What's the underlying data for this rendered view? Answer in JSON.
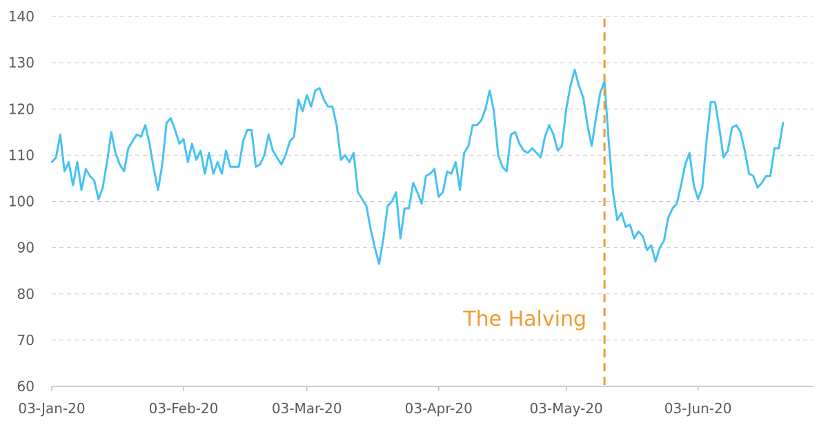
{
  "chart_data": {
    "type": "line",
    "title": "",
    "xlabel": "",
    "ylabel": "",
    "ylim": [
      60,
      140
    ],
    "yticks": [
      60,
      70,
      80,
      90,
      100,
      110,
      120,
      130,
      140
    ],
    "xticks": [
      {
        "date": "2020-01-03",
        "label": "03-Jan-20"
      },
      {
        "date": "2020-02-03",
        "label": "03-Feb-20"
      },
      {
        "date": "2020-03-03",
        "label": "03-Mar-20"
      },
      {
        "date": "2020-04-03",
        "label": "03-Apr-20"
      },
      {
        "date": "2020-05-03",
        "label": "03-May-20"
      },
      {
        "date": "2020-06-03",
        "label": "03-Jun-20"
      }
    ],
    "xlim": [
      "2020-01-03",
      "2020-06-30"
    ],
    "grid": true,
    "series": [
      {
        "color": "#45c2f3",
        "points": [
          [
            "2020-01-03",
            108.5
          ],
          [
            "2020-01-04",
            109.5
          ],
          [
            "2020-01-05",
            114.5
          ],
          [
            "2020-01-06",
            106.5
          ],
          [
            "2020-01-07",
            108.5
          ],
          [
            "2020-01-08",
            103.5
          ],
          [
            "2020-01-09",
            108.5
          ],
          [
            "2020-01-10",
            102.5
          ],
          [
            "2020-01-11",
            107.0
          ],
          [
            "2020-01-12",
            105.5
          ],
          [
            "2020-01-13",
            104.5
          ],
          [
            "2020-01-14",
            100.5
          ],
          [
            "2020-01-15",
            103.0
          ],
          [
            "2020-01-16",
            108.5
          ],
          [
            "2020-01-17",
            115.0
          ],
          [
            "2020-01-18",
            110.5
          ],
          [
            "2020-01-19",
            108.0
          ],
          [
            "2020-01-20",
            106.5
          ],
          [
            "2020-01-21",
            111.5
          ],
          [
            "2020-01-22",
            113.0
          ],
          [
            "2020-01-23",
            114.5
          ],
          [
            "2020-01-24",
            114.0
          ],
          [
            "2020-01-25",
            116.5
          ],
          [
            "2020-01-26",
            112.5
          ],
          [
            "2020-01-27",
            107.0
          ],
          [
            "2020-01-28",
            102.5
          ],
          [
            "2020-01-29",
            108.0
          ],
          [
            "2020-01-30",
            117.0
          ],
          [
            "2020-01-31",
            118.0
          ],
          [
            "2020-02-01",
            115.5
          ],
          [
            "2020-02-02",
            112.5
          ],
          [
            "2020-02-03",
            113.5
          ],
          [
            "2020-02-04",
            108.5
          ],
          [
            "2020-02-05",
            112.5
          ],
          [
            "2020-02-06",
            109.0
          ],
          [
            "2020-02-07",
            111.0
          ],
          [
            "2020-02-08",
            106.0
          ],
          [
            "2020-02-09",
            110.5
          ],
          [
            "2020-02-10",
            106.0
          ],
          [
            "2020-02-11",
            108.5
          ],
          [
            "2020-02-12",
            106.0
          ],
          [
            "2020-02-13",
            111.0
          ],
          [
            "2020-02-14",
            107.5
          ],
          [
            "2020-02-15",
            107.5
          ],
          [
            "2020-02-16",
            107.5
          ],
          [
            "2020-02-17",
            113.0
          ],
          [
            "2020-02-18",
            115.5
          ],
          [
            "2020-02-19",
            115.5
          ],
          [
            "2020-02-20",
            107.5
          ],
          [
            "2020-02-21",
            108.0
          ],
          [
            "2020-02-22",
            110.0
          ],
          [
            "2020-02-23",
            114.5
          ],
          [
            "2020-02-24",
            111.0
          ],
          [
            "2020-02-25",
            109.5
          ],
          [
            "2020-02-26",
            108.0
          ],
          [
            "2020-02-27",
            110.0
          ],
          [
            "2020-02-28",
            113.0
          ],
          [
            "2020-02-29",
            114.0
          ],
          [
            "2020-03-01",
            122.0
          ],
          [
            "2020-03-02",
            119.5
          ],
          [
            "2020-03-03",
            123.0
          ],
          [
            "2020-03-04",
            120.5
          ],
          [
            "2020-03-05",
            124.0
          ],
          [
            "2020-03-06",
            124.5
          ],
          [
            "2020-03-07",
            122.0
          ],
          [
            "2020-03-08",
            120.5
          ],
          [
            "2020-03-09",
            120.5
          ],
          [
            "2020-03-10",
            116.5
          ],
          [
            "2020-03-11",
            109.0
          ],
          [
            "2020-03-12",
            110.0
          ],
          [
            "2020-03-13",
            108.5
          ],
          [
            "2020-03-14",
            110.5
          ],
          [
            "2020-03-15",
            102.0
          ],
          [
            "2020-03-16",
            100.5
          ],
          [
            "2020-03-17",
            99.0
          ],
          [
            "2020-03-18",
            94.0
          ],
          [
            "2020-03-19",
            90.0
          ],
          [
            "2020-03-20",
            86.5
          ],
          [
            "2020-03-21",
            92.0
          ],
          [
            "2020-03-22",
            99.0
          ],
          [
            "2020-03-23",
            100.0
          ],
          [
            "2020-03-24",
            102.0
          ],
          [
            "2020-03-25",
            92.0
          ],
          [
            "2020-03-26",
            98.5
          ],
          [
            "2020-03-27",
            98.5
          ],
          [
            "2020-03-28",
            104.0
          ],
          [
            "2020-03-29",
            102.0
          ],
          [
            "2020-03-30",
            99.5
          ],
          [
            "2020-03-31",
            105.5
          ],
          [
            "2020-04-01",
            106.0
          ],
          [
            "2020-04-02",
            107.0
          ],
          [
            "2020-04-03",
            101.0
          ],
          [
            "2020-04-04",
            102.0
          ],
          [
            "2020-04-05",
            106.5
          ],
          [
            "2020-04-06",
            106.0
          ],
          [
            "2020-04-07",
            108.5
          ],
          [
            "2020-04-08",
            102.5
          ],
          [
            "2020-04-09",
            110.5
          ],
          [
            "2020-04-10",
            112.0
          ],
          [
            "2020-04-11",
            116.5
          ],
          [
            "2020-04-12",
            116.5
          ],
          [
            "2020-04-13",
            117.5
          ],
          [
            "2020-04-14",
            120.0
          ],
          [
            "2020-04-15",
            124.0
          ],
          [
            "2020-04-16",
            119.5
          ],
          [
            "2020-04-17",
            110.0
          ],
          [
            "2020-04-18",
            107.5
          ],
          [
            "2020-04-19",
            106.5
          ],
          [
            "2020-04-20",
            114.5
          ],
          [
            "2020-04-21",
            115.0
          ],
          [
            "2020-04-22",
            112.5
          ],
          [
            "2020-04-23",
            111.0
          ],
          [
            "2020-04-24",
            110.5
          ],
          [
            "2020-04-25",
            111.5
          ],
          [
            "2020-04-26",
            110.5
          ],
          [
            "2020-04-27",
            109.5
          ],
          [
            "2020-04-28",
            114.0
          ],
          [
            "2020-04-29",
            116.5
          ],
          [
            "2020-04-30",
            114.5
          ],
          [
            "2020-05-01",
            111.0
          ],
          [
            "2020-05-02",
            112.0
          ],
          [
            "2020-05-03",
            120.0
          ],
          [
            "2020-05-04",
            125.0
          ],
          [
            "2020-05-05",
            128.5
          ],
          [
            "2020-05-06",
            125.0
          ],
          [
            "2020-05-07",
            122.5
          ],
          [
            "2020-05-08",
            116.5
          ],
          [
            "2020-05-09",
            112.0
          ],
          [
            "2020-05-10",
            118.0
          ],
          [
            "2020-05-11",
            123.5
          ],
          [
            "2020-05-12",
            126.0
          ],
          [
            "2020-05-13",
            113.0
          ],
          [
            "2020-05-14",
            102.0
          ],
          [
            "2020-05-15",
            96.0
          ],
          [
            "2020-05-16",
            97.5
          ],
          [
            "2020-05-17",
            94.5
          ],
          [
            "2020-05-18",
            95.0
          ],
          [
            "2020-05-19",
            92.0
          ],
          [
            "2020-05-20",
            93.5
          ],
          [
            "2020-05-21",
            92.5
          ],
          [
            "2020-05-22",
            89.5
          ],
          [
            "2020-05-23",
            90.5
          ],
          [
            "2020-05-24",
            87.0
          ],
          [
            "2020-05-25",
            90.0
          ],
          [
            "2020-05-26",
            91.5
          ],
          [
            "2020-05-27",
            96.5
          ],
          [
            "2020-05-28",
            98.5
          ],
          [
            "2020-05-29",
            99.5
          ],
          [
            "2020-05-30",
            103.5
          ],
          [
            "2020-05-31",
            108.0
          ],
          [
            "2020-06-01",
            110.5
          ],
          [
            "2020-06-02",
            103.5
          ],
          [
            "2020-06-03",
            100.5
          ],
          [
            "2020-06-04",
            103.0
          ],
          [
            "2020-06-05",
            113.0
          ],
          [
            "2020-06-06",
            121.5
          ],
          [
            "2020-06-07",
            121.5
          ],
          [
            "2020-06-08",
            116.0
          ],
          [
            "2020-06-09",
            109.5
          ],
          [
            "2020-06-10",
            111.0
          ],
          [
            "2020-06-11",
            116.0
          ],
          [
            "2020-06-12",
            116.5
          ],
          [
            "2020-06-13",
            115.0
          ],
          [
            "2020-06-14",
            111.0
          ],
          [
            "2020-06-15",
            106.0
          ],
          [
            "2020-06-16",
            105.5
          ],
          [
            "2020-06-17",
            103.0
          ],
          [
            "2020-06-18",
            104.0
          ],
          [
            "2020-06-19",
            105.5
          ],
          [
            "2020-06-20",
            105.5
          ],
          [
            "2020-06-21",
            111.5
          ],
          [
            "2020-06-22",
            111.5
          ],
          [
            "2020-06-23",
            117.0
          ]
        ]
      }
    ],
    "annotations": [
      {
        "type": "vline",
        "date": "2020-05-12",
        "label": "The Halving",
        "color": "#f19a33"
      }
    ]
  }
}
